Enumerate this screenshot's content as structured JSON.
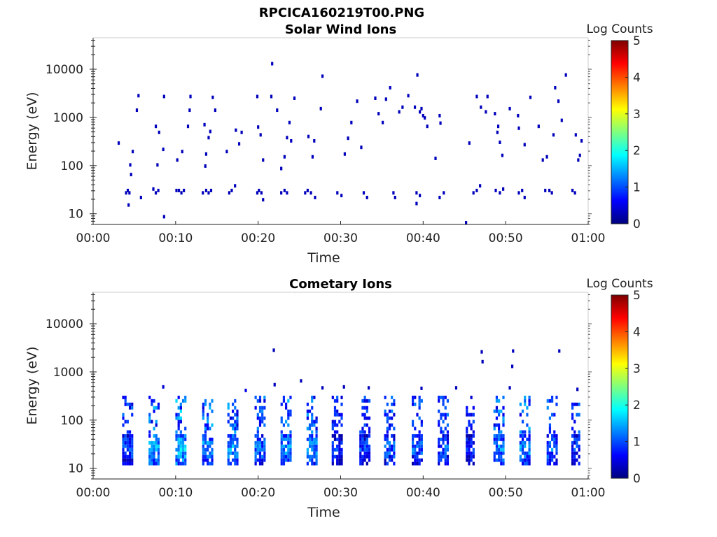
{
  "figure_title": "RPCICA160219T00.PNG",
  "colorscale": [
    "#00007f",
    "#0000ff",
    "#007fff",
    "#00ffff",
    "#7fff7f",
    "#ffff00",
    "#ff7f00",
    "#ff0000",
    "#7f0000"
  ],
  "chart_data": [
    {
      "type": "heatmap",
      "title": "Solar Wind Ions",
      "xlabel": "Time",
      "ylabel": "Energy (eV)",
      "yscale": "log",
      "xlim": [
        0,
        60
      ],
      "ylim": [
        6,
        45000
      ],
      "x_ticks": [
        "00:00",
        "00:10",
        "00:20",
        "00:30",
        "00:40",
        "00:50",
        "01:00"
      ],
      "y_ticks": [
        "10",
        "100",
        "1000",
        "10000"
      ],
      "colorbar": {
        "label": "Log Counts",
        "ticks": [
          "0",
          "1",
          "2",
          "3",
          "4",
          "5"
        ],
        "range": [
          0,
          5
        ]
      },
      "points": [
        [
          3.1,
          270,
          0.3
        ],
        [
          4.0,
          25,
          0.3
        ],
        [
          4.2,
          28,
          0.3
        ],
        [
          4.4,
          25,
          0.3
        ],
        [
          4.3,
          14,
          0.3
        ],
        [
          4.6,
          60,
          0.3
        ],
        [
          4.8,
          180,
          0.3
        ],
        [
          4.5,
          95,
          0.3
        ],
        [
          5.3,
          1300,
          0.3
        ],
        [
          5.5,
          2600,
          0.3
        ],
        [
          5.8,
          20,
          0.3
        ],
        [
          7.3,
          30,
          0.3
        ],
        [
          7.6,
          25,
          0.3
        ],
        [
          7.8,
          95,
          0.3
        ],
        [
          7.9,
          28,
          0.3
        ],
        [
          7.6,
          600,
          0.3
        ],
        [
          8.0,
          450,
          0.3
        ],
        [
          8.6,
          2500,
          0.3
        ],
        [
          8.5,
          200,
          0.3
        ],
        [
          8.6,
          8,
          0.3
        ],
        [
          10.1,
          28,
          0.3
        ],
        [
          10.4,
          28,
          0.3
        ],
        [
          10.7,
          25,
          0.3
        ],
        [
          11.0,
          28,
          0.3
        ],
        [
          10.2,
          120,
          0.3
        ],
        [
          10.8,
          180,
          0.3
        ],
        [
          11.5,
          600,
          0.3
        ],
        [
          11.8,
          2500,
          0.3
        ],
        [
          11.7,
          1300,
          0.3
        ],
        [
          13.3,
          25,
          0.3
        ],
        [
          13.7,
          28,
          0.3
        ],
        [
          14.0,
          25,
          0.3
        ],
        [
          14.3,
          28,
          0.3
        ],
        [
          13.5,
          650,
          0.3
        ],
        [
          13.7,
          160,
          0.3
        ],
        [
          13.6,
          90,
          0.3
        ],
        [
          14.0,
          350,
          0.3
        ],
        [
          14.2,
          470,
          0.3
        ],
        [
          14.8,
          1300,
          0.3
        ],
        [
          14.5,
          2400,
          0.3
        ],
        [
          16.5,
          25,
          0.3
        ],
        [
          16.8,
          28,
          0.3
        ],
        [
          17.2,
          35,
          0.3
        ],
        [
          16.2,
          180,
          0.3
        ],
        [
          17.3,
          500,
          0.3
        ],
        [
          17.7,
          260,
          0.3
        ],
        [
          18.0,
          450,
          0.3
        ],
        [
          19.9,
          25,
          0.3
        ],
        [
          20.1,
          28,
          0.3
        ],
        [
          20.4,
          25,
          0.3
        ],
        [
          20.6,
          18,
          0.3
        ],
        [
          20.0,
          580,
          0.3
        ],
        [
          20.3,
          400,
          0.3
        ],
        [
          19.9,
          2500,
          0.3
        ],
        [
          20.6,
          120,
          0.3
        ],
        [
          21.6,
          2500,
          0.3
        ],
        [
          21.7,
          12000,
          0.3
        ],
        [
          22.3,
          1300,
          0.3
        ],
        [
          22.8,
          25,
          0.3
        ],
        [
          23.2,
          28,
          0.3
        ],
        [
          23.5,
          25,
          0.3
        ],
        [
          22.8,
          80,
          0.3
        ],
        [
          23.2,
          140,
          0.3
        ],
        [
          23.5,
          350,
          0.3
        ],
        [
          23.8,
          720,
          0.3
        ],
        [
          24.0,
          300,
          0.3
        ],
        [
          24.4,
          2300,
          0.3
        ],
        [
          25.7,
          25,
          0.3
        ],
        [
          26.0,
          28,
          0.3
        ],
        [
          26.4,
          25,
          0.3
        ],
        [
          26.9,
          20,
          0.3
        ],
        [
          26.1,
          370,
          0.3
        ],
        [
          26.6,
          140,
          0.3
        ],
        [
          26.8,
          300,
          0.3
        ],
        [
          27.8,
          6600,
          0.3
        ],
        [
          27.6,
          1400,
          0.3
        ],
        [
          29.6,
          25,
          0.3
        ],
        [
          30.1,
          22,
          0.3
        ],
        [
          30.5,
          160,
          0.3
        ],
        [
          30.9,
          340,
          0.3
        ],
        [
          31.3,
          720,
          0.3
        ],
        [
          32.0,
          2000,
          0.3
        ],
        [
          32.5,
          220,
          0.3
        ],
        [
          32.8,
          25,
          0.3
        ],
        [
          33.2,
          20,
          0.3
        ],
        [
          34.2,
          2300,
          0.3
        ],
        [
          34.6,
          1100,
          0.3
        ],
        [
          35.1,
          720,
          0.3
        ],
        [
          35.5,
          2200,
          0.3
        ],
        [
          36.0,
          3800,
          0.3
        ],
        [
          36.4,
          25,
          0.3
        ],
        [
          36.6,
          20,
          0.3
        ],
        [
          37.1,
          1200,
          0.3
        ],
        [
          37.5,
          1500,
          0.3
        ],
        [
          38.2,
          2600,
          0.3
        ],
        [
          39.0,
          1500,
          0.3
        ],
        [
          39.3,
          7000,
          0.3
        ],
        [
          39.6,
          1200,
          0.3
        ],
        [
          39.8,
          1400,
          0.3
        ],
        [
          39.2,
          25,
          0.3
        ],
        [
          39.6,
          22,
          0.3
        ],
        [
          39.2,
          15,
          0.3
        ],
        [
          40.0,
          1000,
          0.3
        ],
        [
          40.2,
          900,
          0.3
        ],
        [
          40.5,
          600,
          0.3
        ],
        [
          42.0,
          20,
          0.3
        ],
        [
          42.5,
          25,
          0.3
        ],
        [
          41.5,
          130,
          0.3
        ],
        [
          42.0,
          1000,
          0.3
        ],
        [
          42.1,
          700,
          0.3
        ],
        [
          45.2,
          6,
          0.3
        ],
        [
          45.6,
          270,
          0.3
        ],
        [
          46.1,
          25,
          0.3
        ],
        [
          46.5,
          28,
          0.3
        ],
        [
          46.9,
          35,
          0.3
        ],
        [
          46.5,
          2500,
          0.3
        ],
        [
          47.0,
          1500,
          0.3
        ],
        [
          47.8,
          2500,
          0.3
        ],
        [
          47.6,
          1200,
          0.3
        ],
        [
          48.8,
          28,
          0.3
        ],
        [
          49.3,
          25,
          0.3
        ],
        [
          49.7,
          30,
          0.3
        ],
        [
          48.7,
          1100,
          0.3
        ],
        [
          49.1,
          600,
          0.3
        ],
        [
          49.3,
          280,
          0.3
        ],
        [
          49.6,
          150,
          0.3
        ],
        [
          49.0,
          450,
          0.3
        ],
        [
          50.5,
          1400,
          0.3
        ],
        [
          51.5,
          1000,
          0.3
        ],
        [
          51.6,
          25,
          0.3
        ],
        [
          52.0,
          28,
          0.3
        ],
        [
          52.3,
          20,
          0.3
        ],
        [
          51.6,
          550,
          0.3
        ],
        [
          52.3,
          250,
          0.3
        ],
        [
          53.0,
          2400,
          0.3
        ],
        [
          54.0,
          600,
          0.3
        ],
        [
          54.5,
          120,
          0.3
        ],
        [
          54.8,
          28,
          0.3
        ],
        [
          55.3,
          28,
          0.3
        ],
        [
          55.6,
          25,
          0.3
        ],
        [
          55.0,
          140,
          0.3
        ],
        [
          55.8,
          400,
          0.3
        ],
        [
          56.0,
          3800,
          0.3
        ],
        [
          56.4,
          2000,
          0.3
        ],
        [
          56.8,
          800,
          0.3
        ],
        [
          57.3,
          7000,
          0.3
        ],
        [
          58.1,
          28,
          0.3
        ],
        [
          58.4,
          25,
          0.3
        ],
        [
          58.8,
          120,
          0.3
        ],
        [
          59.0,
          150,
          0.3
        ],
        [
          58.5,
          400,
          0.3
        ],
        [
          59.2,
          300,
          0.3
        ]
      ]
    },
    {
      "type": "heatmap",
      "title": "Cometary Ions",
      "xlabel": "Time",
      "ylabel": "Energy (eV)",
      "yscale": "log",
      "xlim": [
        0,
        60
      ],
      "ylim": [
        6,
        45000
      ],
      "x_ticks": [
        "00:00",
        "00:10",
        "00:20",
        "00:30",
        "00:40",
        "00:50",
        "01:00"
      ],
      "y_ticks": [
        "10",
        "100",
        "1000",
        "10000"
      ],
      "colorbar": {
        "label": "Log Counts",
        "ticks": [
          "0",
          "1",
          "2",
          "3",
          "4",
          "5"
        ],
        "range": [
          0,
          5
        ]
      },
      "bursts": [
        [
          4.2,
          1.1,
          1.5
        ],
        [
          7.5,
          1.3,
          1.9
        ],
        [
          10.7,
          1.2,
          2.0
        ],
        [
          14.0,
          1.3,
          1.8
        ],
        [
          17.0,
          1.2,
          1.8
        ],
        [
          20.3,
          1.2,
          1.6
        ],
        [
          23.5,
          1.3,
          1.8
        ],
        [
          26.6,
          1.2,
          1.7
        ],
        [
          29.6,
          1.1,
          1.3
        ],
        [
          33.0,
          1.2,
          1.4
        ],
        [
          36.0,
          1.2,
          1.5
        ],
        [
          39.3,
          1.1,
          1.5
        ],
        [
          42.5,
          1.2,
          1.5
        ],
        [
          45.8,
          1.0,
          1.3
        ],
        [
          49.3,
          1.3,
          1.7
        ],
        [
          52.4,
          1.2,
          1.8
        ],
        [
          55.7,
          1.2,
          1.6
        ],
        [
          58.6,
          1.0,
          1.4
        ]
      ],
      "points": [
        [
          8.5,
          450,
          0.4
        ],
        [
          18.5,
          380,
          0.5
        ],
        [
          21.9,
          2600,
          0.3
        ],
        [
          22.0,
          500,
          0.3
        ],
        [
          25.2,
          600,
          0.3
        ],
        [
          27.8,
          430,
          0.3
        ],
        [
          30.4,
          450,
          0.3
        ],
        [
          33.4,
          430,
          0.3
        ],
        [
          39.8,
          420,
          0.3
        ],
        [
          44.0,
          430,
          0.3
        ],
        [
          47.1,
          2400,
          0.3
        ],
        [
          47.2,
          1500,
          0.3
        ],
        [
          50.5,
          430,
          0.3
        ],
        [
          50.9,
          2500,
          0.3
        ],
        [
          50.8,
          1200,
          0.3
        ],
        [
          56.5,
          2500,
          0.3
        ],
        [
          58.7,
          400,
          0.3
        ]
      ]
    }
  ]
}
